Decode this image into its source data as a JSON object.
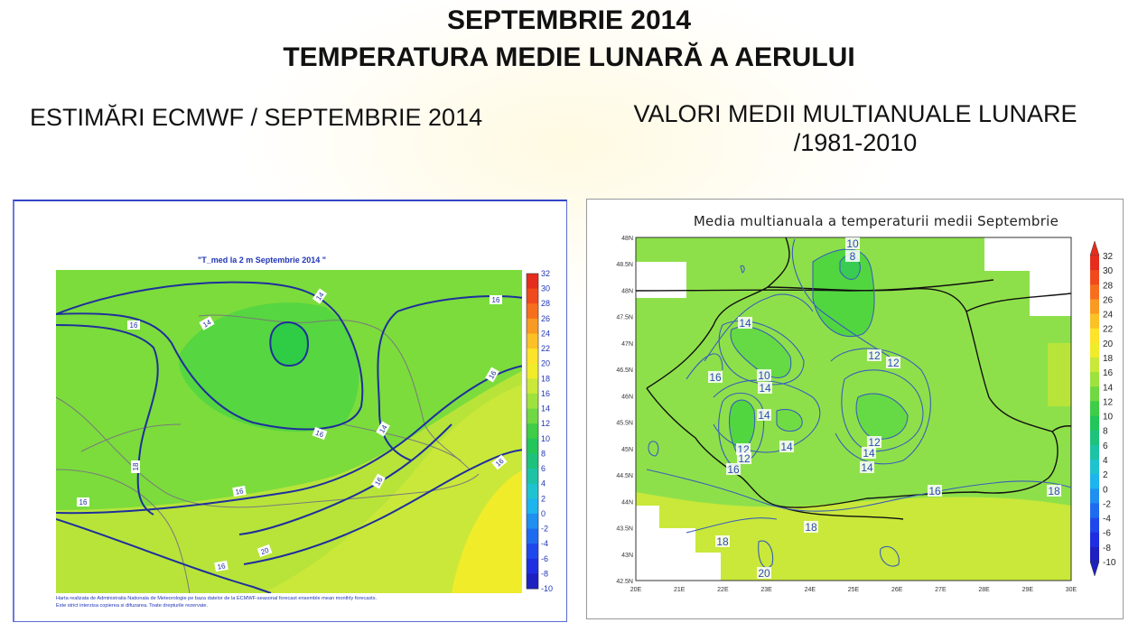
{
  "header": {
    "title_line1": "SEPTEMBRIE 2014",
    "title_line2": "TEMPERATURA MEDIE LUNARĂ A AERULUI"
  },
  "left_panel": {
    "subtitle": "ESTIMĂRI ECMWF / SEPTEMBRIE 2014",
    "map_title": "\"T_med la 2 m Septembrie 2014 \"",
    "colorbar_labels": [
      "32",
      "30",
      "28",
      "26",
      "24",
      "22",
      "20",
      "18",
      "16",
      "14",
      "12",
      "10",
      "8",
      "6",
      "4",
      "2",
      "0",
      "-2",
      "-4",
      "-6",
      "-8",
      "-10"
    ],
    "contour_labels": [
      "14",
      "14",
      "16",
      "16",
      "16",
      "14",
      "16",
      "16",
      "16",
      "16",
      "18",
      "16",
      "20",
      "16",
      "20"
    ],
    "credit_line1": "Harta realizata de Administratia Nationala de Meteorologie pe baza datelor de la ECMWF-seasonal forecast ensemble mean monthly forecasts.",
    "credit_line2": "Este strict interzisa copierea si difuzarea. Toate drepturile rezervate."
  },
  "right_panel": {
    "subtitle_line1": "VALORI MEDII MULTIANUALE LUNARE",
    "subtitle_line2": "/1981-2010",
    "map_title": "Media multianuala a temperaturii medii Septembrie",
    "lat_labels": [
      "48N",
      "48.5N",
      "48N",
      "47.5N",
      "47N",
      "46.5N",
      "46N",
      "45.5N",
      "45N",
      "44.5N",
      "44N",
      "43.5N",
      "43N",
      "42.5N"
    ],
    "lon_labels": [
      "20E",
      "21E",
      "22E",
      "23E",
      "24E",
      "25E",
      "26E",
      "27E",
      "28E",
      "29E",
      "30E"
    ],
    "colorbar_labels": [
      "32",
      "30",
      "28",
      "26",
      "24",
      "22",
      "20",
      "18",
      "16",
      "14",
      "12",
      "10",
      "8",
      "6",
      "4",
      "2",
      "0",
      "-2",
      "-4",
      "-6",
      "-8",
      "-10"
    ],
    "contour_labels": [
      "10",
      "8",
      "14",
      "16",
      "10",
      "14",
      "12",
      "12",
      "14",
      "14",
      "12",
      "12",
      "16",
      "14",
      "12",
      "14",
      "16",
      "18",
      "18",
      "18",
      "18",
      "20"
    ]
  },
  "colors": {
    "bg_green": "#7bdc3c",
    "inner_green": "#52d640",
    "yellow_green": "#c9e83a",
    "yellow": "#f0ec2a",
    "contour_blue": "#1f2f9c"
  }
}
